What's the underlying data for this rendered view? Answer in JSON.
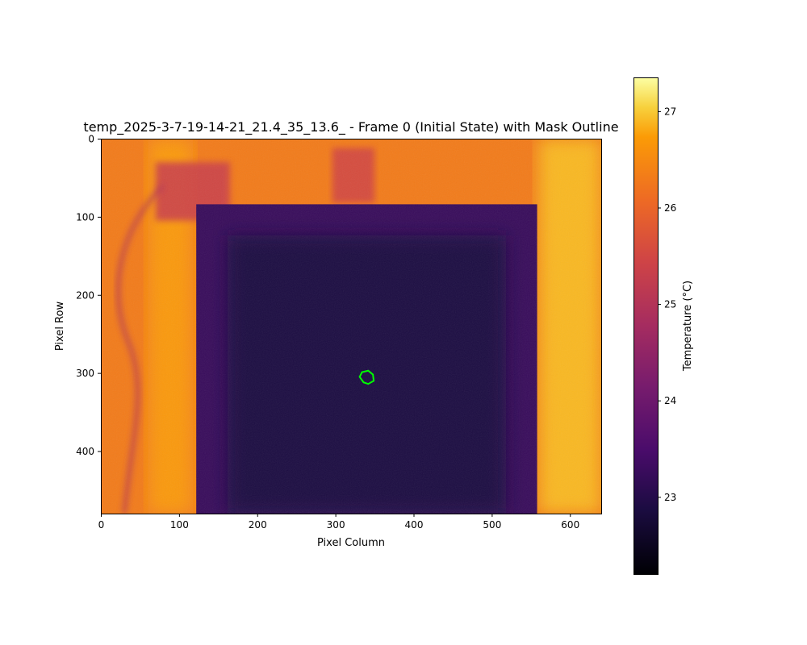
{
  "chart_data": {
    "type": "heatmap",
    "title": "temp_2025-3-7-19-14-21_21.4_35_13.6_ - Frame 0 (Initial State) with Mask Outline",
    "xlabel": "Pixel Column",
    "ylabel": "Pixel Row",
    "xlim": [
      0,
      640
    ],
    "ylim": [
      480,
      0
    ],
    "x_ticks": [
      0,
      100,
      200,
      300,
      400,
      500,
      600
    ],
    "y_ticks": [
      0,
      100,
      200,
      300,
      400
    ],
    "colormap": "inferno",
    "colorbar": {
      "label": "Temperature (°C)",
      "range": [
        22.2,
        27.35
      ],
      "ticks": [
        23,
        24,
        25,
        26,
        27
      ]
    },
    "regions": [
      {
        "name": "background",
        "x": [
          0,
          640
        ],
        "y": [
          0,
          480
        ],
        "temperature": 26.3
      },
      {
        "name": "cold plate",
        "x": [
          122,
          558
        ],
        "y": [
          84,
          480
        ],
        "temperature": 22.9
      },
      {
        "name": "right border",
        "x": [
          560,
          640
        ],
        "y": [
          0,
          480
        ],
        "temperature": 26.9
      }
    ],
    "mask_outline": {
      "color": "#00ff00",
      "points": [
        [
          334,
          299
        ],
        [
          342,
          297
        ],
        [
          348,
          302
        ],
        [
          349,
          310
        ],
        [
          342,
          314
        ],
        [
          336,
          312
        ],
        [
          331,
          305
        ]
      ]
    }
  }
}
